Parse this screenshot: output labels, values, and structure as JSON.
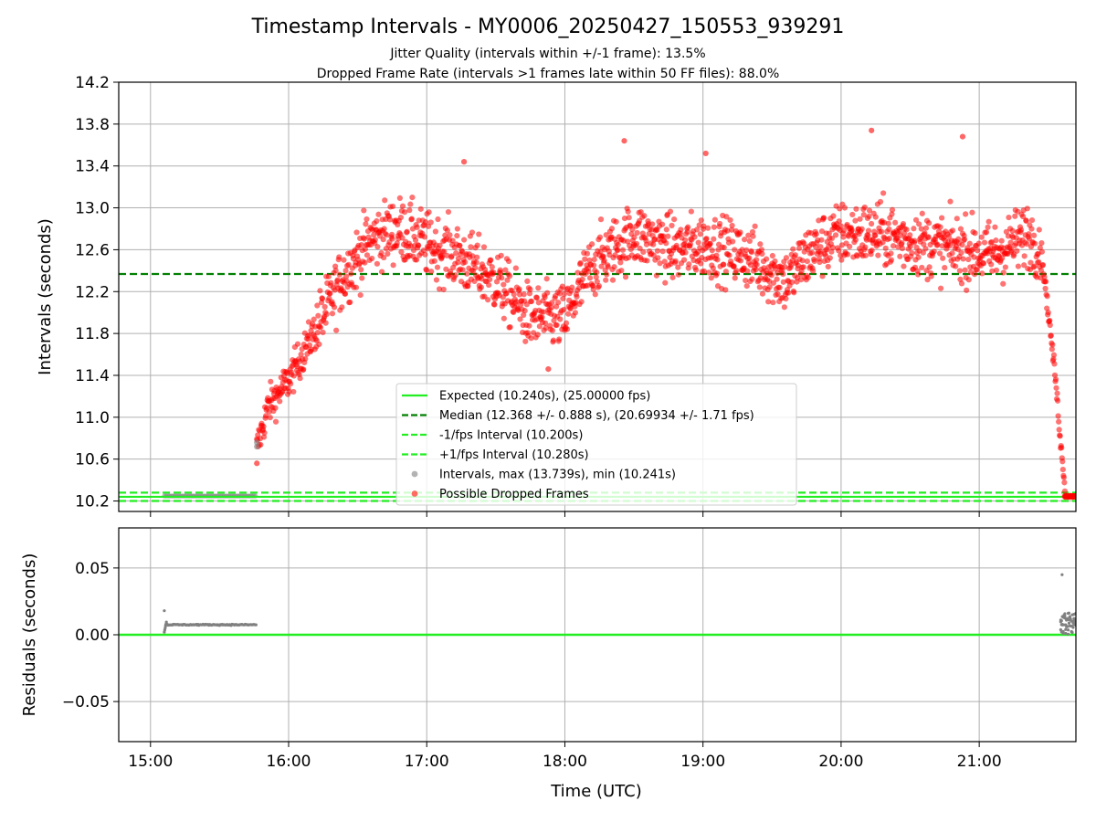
{
  "chart_data": {
    "type": "scatter",
    "title": "Timestamp Intervals - MY0006_20250427_150553_939291",
    "subtitle_lines": [
      "Jitter Quality (intervals within +/-1 frame): 13.5%",
      "Dropped Frame Rate (intervals >1 frames late within 50 FF files): 88.0%"
    ],
    "xlabel": "Time (UTC)",
    "x_ticks": [
      "15:00",
      "16:00",
      "17:00",
      "18:00",
      "19:00",
      "20:00",
      "21:00"
    ],
    "x_tick_hours": [
      15,
      16,
      17,
      18,
      19,
      20,
      21
    ],
    "xlim_hours": [
      14.77,
      21.7
    ],
    "grid": true,
    "legend_position": "lower center",
    "top_panel": {
      "ylabel": "Intervals (seconds)",
      "ylim": [
        10.1,
        14.2
      ],
      "y_ticks": [
        "14.2",
        "13.8",
        "13.4",
        "13.0",
        "12.6",
        "12.2",
        "11.8",
        "11.4",
        "11.0",
        "10.6",
        "10.2"
      ],
      "y_tick_values": [
        14.2,
        13.8,
        13.4,
        13.0,
        12.6,
        12.2,
        11.8,
        11.4,
        11.0,
        10.6,
        10.2
      ],
      "expected_interval": 10.24,
      "median": 12.368,
      "minus_interval": 10.2,
      "plus_interval": 10.28,
      "normal_interval_range_hours": [
        15.1,
        15.77
      ],
      "normal_interval_value": 10.248,
      "dropped_frame_trend": [
        {
          "x": 15.77,
          "y": 10.7
        },
        {
          "x": 15.85,
          "y": 11.1
        },
        {
          "x": 16.0,
          "y": 11.35
        },
        {
          "x": 16.2,
          "y": 11.85
        },
        {
          "x": 16.4,
          "y": 12.35
        },
        {
          "x": 16.6,
          "y": 12.7
        },
        {
          "x": 16.8,
          "y": 12.8
        },
        {
          "x": 17.0,
          "y": 12.65
        },
        {
          "x": 17.2,
          "y": 12.55
        },
        {
          "x": 17.5,
          "y": 12.3
        },
        {
          "x": 17.75,
          "y": 11.95
        },
        {
          "x": 18.0,
          "y": 11.95
        },
        {
          "x": 18.2,
          "y": 12.45
        },
        {
          "x": 18.5,
          "y": 12.75
        },
        {
          "x": 18.8,
          "y": 12.6
        },
        {
          "x": 19.0,
          "y": 12.65
        },
        {
          "x": 19.3,
          "y": 12.55
        },
        {
          "x": 19.6,
          "y": 12.3
        },
        {
          "x": 19.8,
          "y": 12.6
        },
        {
          "x": 20.0,
          "y": 12.75
        },
        {
          "x": 20.3,
          "y": 12.75
        },
        {
          "x": 20.6,
          "y": 12.65
        },
        {
          "x": 20.9,
          "y": 12.6
        },
        {
          "x": 21.1,
          "y": 12.55
        },
        {
          "x": 21.35,
          "y": 12.75
        },
        {
          "x": 21.45,
          "y": 12.6
        },
        {
          "x": 21.5,
          "y": 12.0
        },
        {
          "x": 21.55,
          "y": 11.4
        },
        {
          "x": 21.6,
          "y": 10.6
        },
        {
          "x": 21.63,
          "y": 10.25
        },
        {
          "x": 21.7,
          "y": 10.24
        }
      ],
      "notable_points": [
        {
          "x": 20.22,
          "y": 13.739
        },
        {
          "x": 18.43,
          "y": 13.64
        },
        {
          "x": 20.88,
          "y": 13.68
        },
        {
          "x": 17.27,
          "y": 13.44
        },
        {
          "x": 19.02,
          "y": 13.52
        },
        {
          "x": 17.88,
          "y": 11.46
        },
        {
          "x": 15.77,
          "y": 10.56
        }
      ]
    },
    "bottom_panel": {
      "ylabel": "Residuals (seconds)",
      "ylim": [
        -0.08,
        0.08
      ],
      "y_ticks": [
        "0.05",
        "0.00",
        "−0.05"
      ],
      "y_tick_values": [
        0.05,
        0.0,
        -0.05
      ],
      "residual_band_range_hours": [
        15.1,
        15.77
      ],
      "residual_band_value": 0.0075,
      "residual_spike": {
        "x": 15.1,
        "y": 0.018
      },
      "residual_late_max": {
        "x": 21.6,
        "y": 0.045
      }
    },
    "legend": [
      {
        "label": "Expected (10.240s), (25.00000 fps)",
        "style": "solid",
        "color": "#22ee22"
      },
      {
        "label": "Median (12.368 +/- 0.888 s), (20.69934 +/- 1.71 fps)",
        "style": "dashed",
        "color": "#008000"
      },
      {
        "label": "-1/fps Interval (10.200s)",
        "style": "dashed",
        "color": "#22ee22"
      },
      {
        "label": "+1/fps Interval (10.280s)",
        "style": "dashed",
        "color": "#22ee22"
      },
      {
        "label": "Intervals, max (13.739s), min (10.241s)",
        "style": "marker",
        "color": "#9a9a9a"
      },
      {
        "label": "Possible Dropped Frames",
        "style": "marker",
        "color": "#ff3b30"
      }
    ],
    "colors": {
      "expected": "#22ee22",
      "median": "#008000",
      "interval_marker": "#808080",
      "dropped_marker": "#ff0000",
      "grid": "#b0b0b0"
    }
  }
}
